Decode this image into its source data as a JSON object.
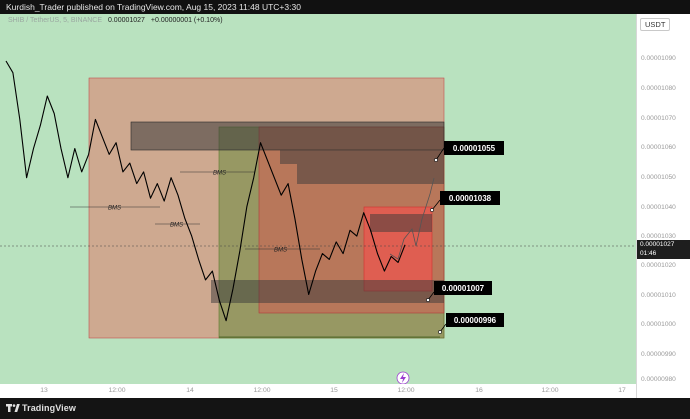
{
  "header": {
    "published_line": "Kurdish_Trader published on TradingView.com, Aug 15, 2023 11:48 UTC+3:30"
  },
  "legend": {
    "symbol": "SHIB / TetherUS, 5, BINANCE",
    "price": "0.00001027",
    "change": "+0.00000001 (+0.10%)"
  },
  "price_axis": {
    "currency": "USDT",
    "current_price": "0.00001027",
    "countdown": "01:46"
  },
  "footer": {
    "brand": "TradingView"
  },
  "colors": {
    "background": "#b9e2bf",
    "price_line": "#000000",
    "red_zone": "#e05a5a",
    "green_zone": "#6a8a3e",
    "dark_block": "#3a3a3a"
  },
  "chart_data": {
    "type": "line",
    "title": "",
    "xlabel": "",
    "ylabel": "",
    "x_tick_labels": [
      "13",
      "12:00",
      "14",
      "12:00",
      "15",
      "12:00",
      "16",
      "12:00",
      "17"
    ],
    "y_tick_labels": [
      "0.00001090",
      "0.00001080",
      "0.00001070",
      "0.00001060",
      "0.00001050",
      "0.00001040",
      "0.00001030",
      "0.00001020",
      "0.00001010",
      "0.00001000",
      "0.00000990",
      "0.00000980"
    ],
    "ylim": [
      9.8e-06,
      1.1e-05
    ],
    "grid": false,
    "series": [
      {
        "values": [
          1.09e-05,
          1.086e-05,
          1.07e-05,
          1.05e-05,
          1.06e-05,
          1.068e-05,
          1.078e-05,
          1.072e-05,
          1.06e-05,
          1.05e-05,
          1.06e-05,
          1.052e-05,
          1.058e-05,
          1.07e-05,
          1.064e-05,
          1.058e-05,
          1.062e-05,
          1.052e-05,
          1.055e-05,
          1.048e-05,
          1.052e-05,
          1.043e-05,
          1.048e-05,
          1.042e-05,
          1.05e-05,
          1.044e-05,
          1.036e-05,
          1.03e-05,
          1.022e-05,
          1.015e-05,
          1.018e-05,
          1.008e-05,
          1.001e-05,
          1.012e-05,
          1.025e-05,
          1.04e-05,
          1.05e-05,
          1.062e-05,
          1.056e-05,
          1.05e-05,
          1.044e-05,
          1.048e-05,
          1.036e-05,
          1.022e-05,
          1.01e-05,
          1.018e-05,
          1.024e-05,
          1.022e-05,
          1.028e-05,
          1.024e-05,
          1.032e-05,
          1.03e-05,
          1.038e-05,
          1.032e-05,
          1.024e-05,
          1.018e-05,
          1.023e-05,
          1.021e-05,
          1.027e-05
        ]
      }
    ],
    "zones": [
      {
        "name": "Large red zone",
        "top": 1.08e-05,
        "bottom": 9.96e-06
      },
      {
        "name": "Green zone",
        "top": 1.066e-05,
        "bottom": 9.96e-06
      },
      {
        "name": "Mid red zone",
        "top": 1.066e-05,
        "bottom": 1.004e-05
      },
      {
        "name": "Small red zone",
        "top": 1.04e-05,
        "bottom": 1.013e-05
      }
    ],
    "annotations": [
      {
        "label": "0.00001055",
        "price": 1.055e-05
      },
      {
        "label": "0.00001038",
        "price": 1.038e-05
      },
      {
        "label": "0.00001007",
        "price": 1.007e-05
      },
      {
        "label": "0.00000996",
        "price": 9.96e-06
      }
    ],
    "bms_labels": [
      "BMS",
      "BMS",
      "BMS",
      "BMS"
    ]
  }
}
